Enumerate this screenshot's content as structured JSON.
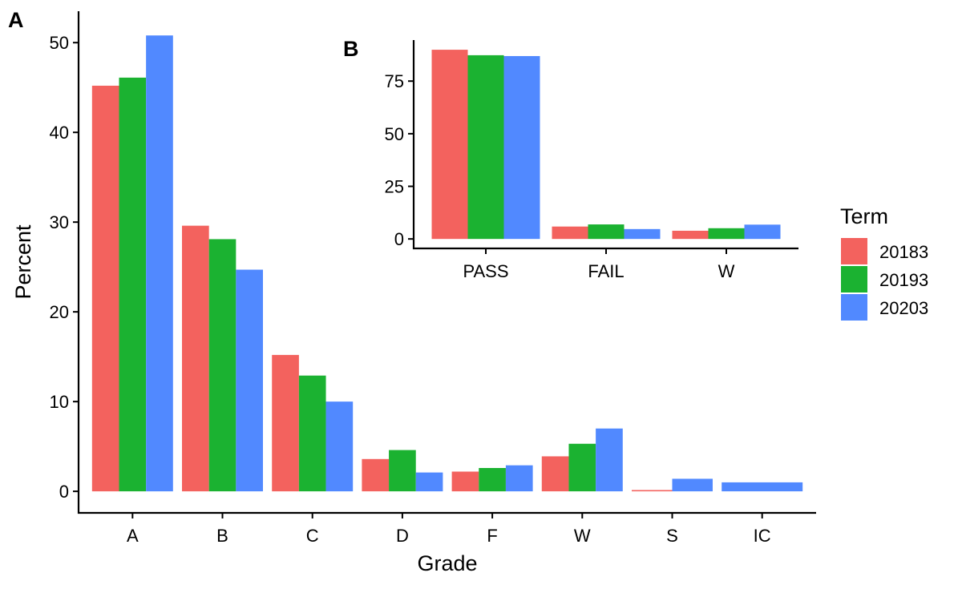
{
  "colors": {
    "20183": "#F3625E",
    "20193": "#1BB231",
    "20203": "#5189FF",
    "axis": "#000000",
    "background": "#FFFFFF"
  },
  "legend": {
    "title": "Term",
    "placement": "right",
    "items": [
      "20183",
      "20193",
      "20203"
    ]
  },
  "chart_data": [
    {
      "panel": "A",
      "type": "bar",
      "position": "dodge",
      "xlabel": "Grade",
      "ylabel": "Percent",
      "categories": [
        "A",
        "B",
        "C",
        "D",
        "F",
        "W",
        "S",
        "IC"
      ],
      "ylim": [
        -2.4,
        53.5
      ],
      "yticks": [
        0,
        10,
        20,
        30,
        40,
        50
      ],
      "grid": false,
      "series": [
        {
          "name": "20183",
          "values": [
            45.2,
            29.6,
            15.2,
            3.6,
            2.2,
            3.9,
            0.1,
            null
          ]
        },
        {
          "name": "20193",
          "values": [
            46.1,
            28.1,
            12.9,
            4.6,
            2.6,
            5.3,
            null,
            null
          ]
        },
        {
          "name": "20203",
          "values": [
            50.8,
            24.7,
            10.0,
            2.1,
            2.9,
            7.0,
            1.4,
            1.0
          ]
        }
      ]
    },
    {
      "panel": "B",
      "type": "bar",
      "position": "dodge",
      "xlabel": "",
      "ylabel": "",
      "categories": [
        "PASS",
        "FAIL",
        "W"
      ],
      "ylim": [
        -4.5,
        94.5
      ],
      "yticks": [
        0,
        25,
        50,
        75
      ],
      "grid": false,
      "series": [
        {
          "name": "20183",
          "values": [
            89.9,
            5.9,
            3.9
          ]
        },
        {
          "name": "20193",
          "values": [
            87.3,
            6.9,
            5.1
          ]
        },
        {
          "name": "20203",
          "values": [
            86.9,
            4.7,
            6.8
          ]
        }
      ]
    }
  ]
}
